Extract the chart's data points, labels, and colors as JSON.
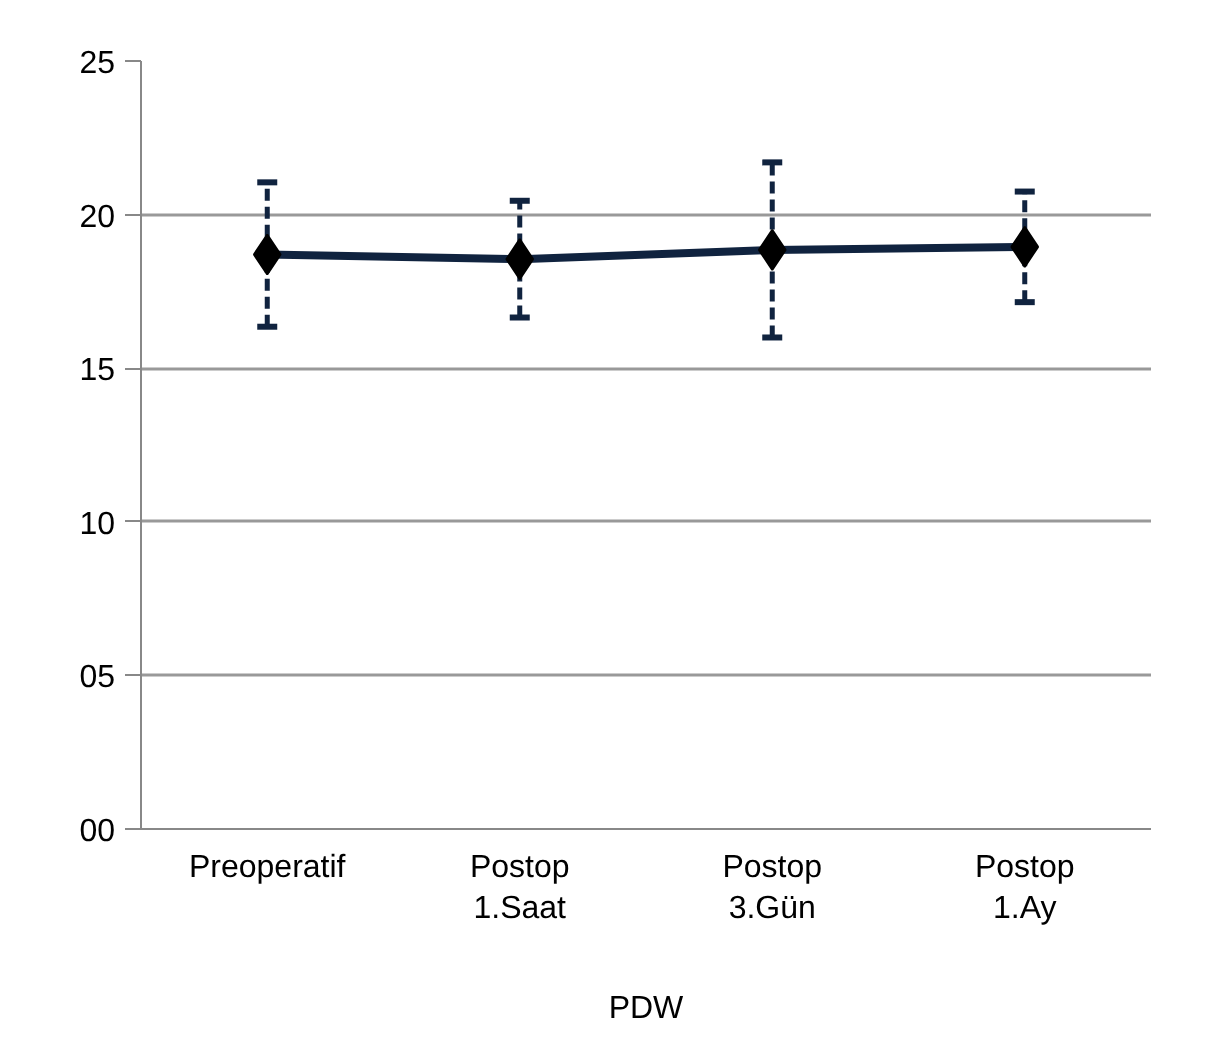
{
  "chart_data": {
    "type": "line",
    "xlabel": "PDW",
    "categories": [
      "Preoperatif",
      "Postop\n1.Saat",
      "Postop\n3.Gün",
      "Postop\n1.Ay"
    ],
    "series": [
      {
        "color": "#10233f",
        "values": [
          18.7,
          18.55,
          18.85,
          18.95
        ],
        "errors": [
          2.35,
          1.9,
          2.85,
          1.8
        ]
      }
    ],
    "ylim": [
      0,
      25
    ],
    "yticks": [
      {
        "value": 0,
        "label": "00"
      },
      {
        "value": 5,
        "label": "05"
      },
      10,
      15,
      20,
      25
    ],
    "grid": "y",
    "marker": "diamond",
    "line_style": "solid"
  }
}
